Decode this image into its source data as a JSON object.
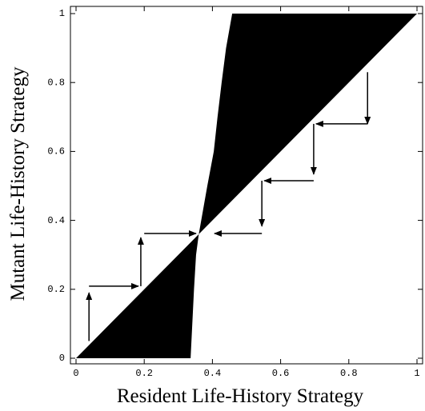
{
  "chart_data": {
    "type": "pip",
    "xlabel": "Resident Life-History Strategy",
    "ylabel": "Mutant Life-History Strategy",
    "xlim": [
      0,
      1
    ],
    "ylim": [
      0,
      1
    ],
    "xticks": [
      0,
      0.2,
      0.4,
      0.6,
      0.8,
      1
    ],
    "yticks": [
      0,
      0.2,
      0.4,
      0.6,
      0.8,
      1
    ],
    "color": "#000000",
    "boundary": {
      "x": [
        0.336,
        0.341,
        0.346,
        0.352,
        0.36,
        0.385,
        0.404,
        0.415,
        0.427,
        0.44,
        0.458
      ],
      "y": [
        0,
        0.1,
        0.2,
        0.3,
        0.36,
        0.5,
        0.6,
        0.7,
        0.8,
        0.9,
        1
      ]
    },
    "arrows": [
      {
        "x0": 0.038,
        "y0": 0.05,
        "x1": 0.038,
        "y1": 0.19
      },
      {
        "x0": 0.038,
        "y0": 0.209,
        "x1": 0.183,
        "y1": 0.209
      },
      {
        "x0": 0.19,
        "y0": 0.209,
        "x1": 0.19,
        "y1": 0.35
      },
      {
        "x0": 0.2,
        "y0": 0.362,
        "x1": 0.352,
        "y1": 0.362
      },
      {
        "x0": 0.855,
        "y0": 0.83,
        "x1": 0.855,
        "y1": 0.68
      },
      {
        "x0": 0.855,
        "y0": 0.68,
        "x1": 0.704,
        "y1": 0.68
      },
      {
        "x0": 0.697,
        "y0": 0.68,
        "x1": 0.697,
        "y1": 0.534
      },
      {
        "x0": 0.697,
        "y0": 0.515,
        "x1": 0.552,
        "y1": 0.515
      },
      {
        "x0": 0.545,
        "y0": 0.515,
        "x1": 0.545,
        "y1": 0.383
      },
      {
        "x0": 0.545,
        "y0": 0.362,
        "x1": 0.406,
        "y1": 0.362
      }
    ]
  }
}
